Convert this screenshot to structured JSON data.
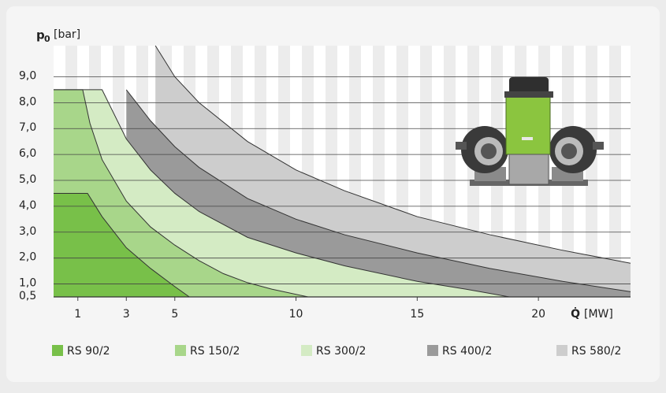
{
  "chart_data": {
    "type": "area",
    "y_axis_label": {
      "symbol": "p",
      "subscript": "0",
      "unit": "[bar]"
    },
    "x_axis_label": {
      "symbol": "Q̇",
      "unit": "[MW]"
    },
    "xlim": [
      0,
      23.8
    ],
    "ylim": [
      0.5,
      10.2
    ],
    "xticks": [
      1,
      3,
      5,
      10,
      15,
      20
    ],
    "yticks": [
      {
        "value": 0.5,
        "label": "0,5"
      },
      {
        "value": 1,
        "label": "1,0"
      },
      {
        "value": 2,
        "label": "2,0"
      },
      {
        "value": 3,
        "label": "3,0"
      },
      {
        "value": 4,
        "label": "4,0"
      },
      {
        "value": 5,
        "label": "5,0"
      },
      {
        "value": 6,
        "label": "6,0"
      },
      {
        "value": 7,
        "label": "7,0"
      },
      {
        "value": 8,
        "label": "8,0"
      },
      {
        "value": 9,
        "label": "9,0"
      }
    ],
    "grid": true,
    "series": [
      {
        "name": "RS 90/2",
        "color": "#78c049",
        "x": [
          0,
          1.4,
          2,
          3,
          4,
          5,
          5.6
        ],
        "values": [
          4.5,
          4.5,
          3.6,
          2.4,
          1.6,
          0.9,
          0.5
        ]
      },
      {
        "name": "RS 150/2",
        "color": "#a8d68a",
        "x": [
          0,
          1.2,
          1.5,
          2,
          3,
          4,
          5,
          6,
          7,
          8,
          9,
          10.5
        ],
        "values": [
          8.5,
          8.5,
          7.2,
          5.8,
          4.2,
          3.2,
          2.5,
          1.9,
          1.4,
          1.05,
          0.8,
          0.5
        ]
      },
      {
        "name": "RS 300/2",
        "color": "#d4ebc4",
        "x": [
          0,
          2,
          3,
          4,
          5,
          6,
          8,
          10,
          12,
          15,
          17,
          18.8
        ],
        "values": [
          8.5,
          8.5,
          6.6,
          5.4,
          4.5,
          3.8,
          2.8,
          2.2,
          1.7,
          1.1,
          0.8,
          0.5
        ]
      },
      {
        "name": "RS 400/2",
        "color": "#9a9a9a",
        "x": [
          3,
          4,
          5,
          6,
          8,
          10,
          12,
          15,
          18,
          21,
          23.8
        ],
        "values": [
          8.5,
          7.3,
          6.3,
          5.5,
          4.3,
          3.5,
          2.9,
          2.2,
          1.6,
          1.1,
          0.7
        ]
      },
      {
        "name": "RS 580/2",
        "color": "#cdcdcd",
        "x": [
          4.2,
          5,
          6,
          8,
          10,
          12,
          15,
          18,
          21,
          23.8
        ],
        "values": [
          10.2,
          9.0,
          8.0,
          6.5,
          5.4,
          4.6,
          3.6,
          2.9,
          2.3,
          1.8
        ]
      }
    ]
  }
}
